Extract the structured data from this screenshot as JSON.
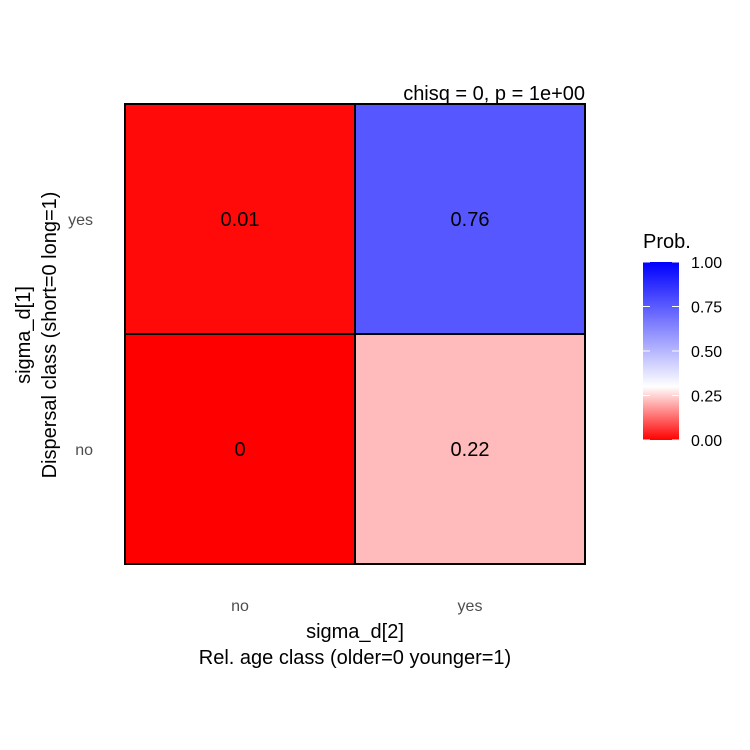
{
  "chart_data": {
    "type": "heatmap",
    "annotation": "chisq = 0, p = 1e+00",
    "x_categories": [
      "no",
      "yes"
    ],
    "y_categories": [
      "no",
      "yes"
    ],
    "xlabel_line1": "sigma_d[2]",
    "xlabel_line2": "Rel. age class (older=0 younger=1)",
    "ylabel_line1": "sigma_d[1]",
    "ylabel_line2": "Dispersal class (short=0 long=1)",
    "cells": [
      {
        "x": "no",
        "y": "yes",
        "value": 0.01,
        "label": "0.01"
      },
      {
        "x": "yes",
        "y": "yes",
        "value": 0.76,
        "label": "0.76"
      },
      {
        "x": "no",
        "y": "no",
        "value": 0.0,
        "label": "0"
      },
      {
        "x": "yes",
        "y": "no",
        "value": 0.22,
        "label": "0.22"
      }
    ],
    "legend": {
      "title": "Prob.",
      "placement": "right",
      "range": [
        0,
        1
      ],
      "ticks": [
        {
          "value": 1.0,
          "label": "1.00"
        },
        {
          "value": 0.75,
          "label": "0.75"
        },
        {
          "value": 0.5,
          "label": "0.50"
        },
        {
          "value": 0.25,
          "label": "0.25"
        },
        {
          "value": 0.0,
          "label": "0.00"
        }
      ]
    },
    "colors": {
      "low": "#ff0000",
      "mid": "#ffffff",
      "high": "#0000ff",
      "midpoint": 0.3,
      "border": "#000000"
    },
    "grid": false
  }
}
